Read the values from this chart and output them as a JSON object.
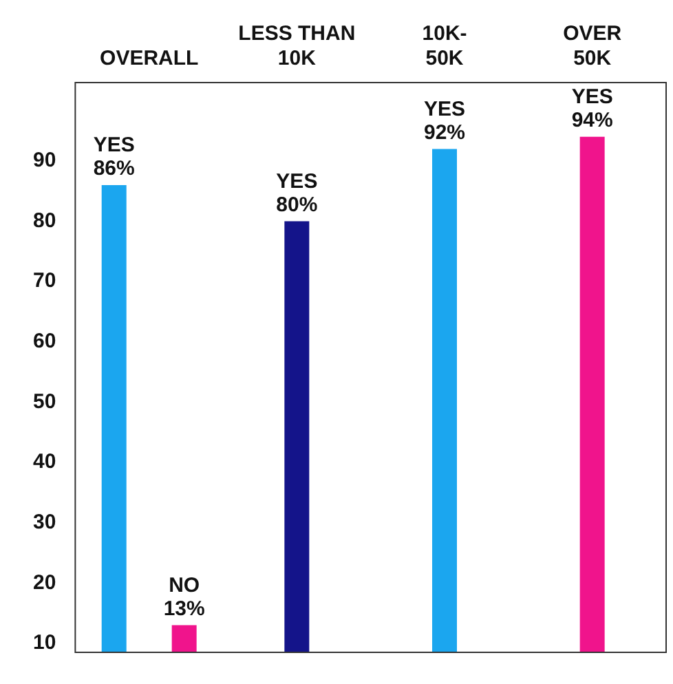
{
  "chart_data": {
    "type": "bar",
    "categories": [
      "OVERALL",
      "LESS THAN 10K",
      "10K-50K",
      "OVER 50K"
    ],
    "series": [
      {
        "name": "YES",
        "colors": [
          "#1ba6ef",
          "#14148a",
          "#1ba6ef",
          "#f0148c"
        ],
        "values": [
          86,
          80,
          92,
          94
        ],
        "value_labels": [
          "86%",
          "80%",
          "92%",
          "94%"
        ]
      },
      {
        "name": "NO",
        "colors": [
          "#f0148c",
          null,
          null,
          null
        ],
        "values": [
          13,
          null,
          null,
          null
        ],
        "value_labels": [
          "13%",
          null,
          null,
          null
        ]
      }
    ],
    "ylim": [
      8.5,
      103
    ],
    "yticks": [
      10,
      20,
      30,
      40,
      50,
      60,
      70,
      80,
      90
    ],
    "grid": false,
    "legend": false
  }
}
